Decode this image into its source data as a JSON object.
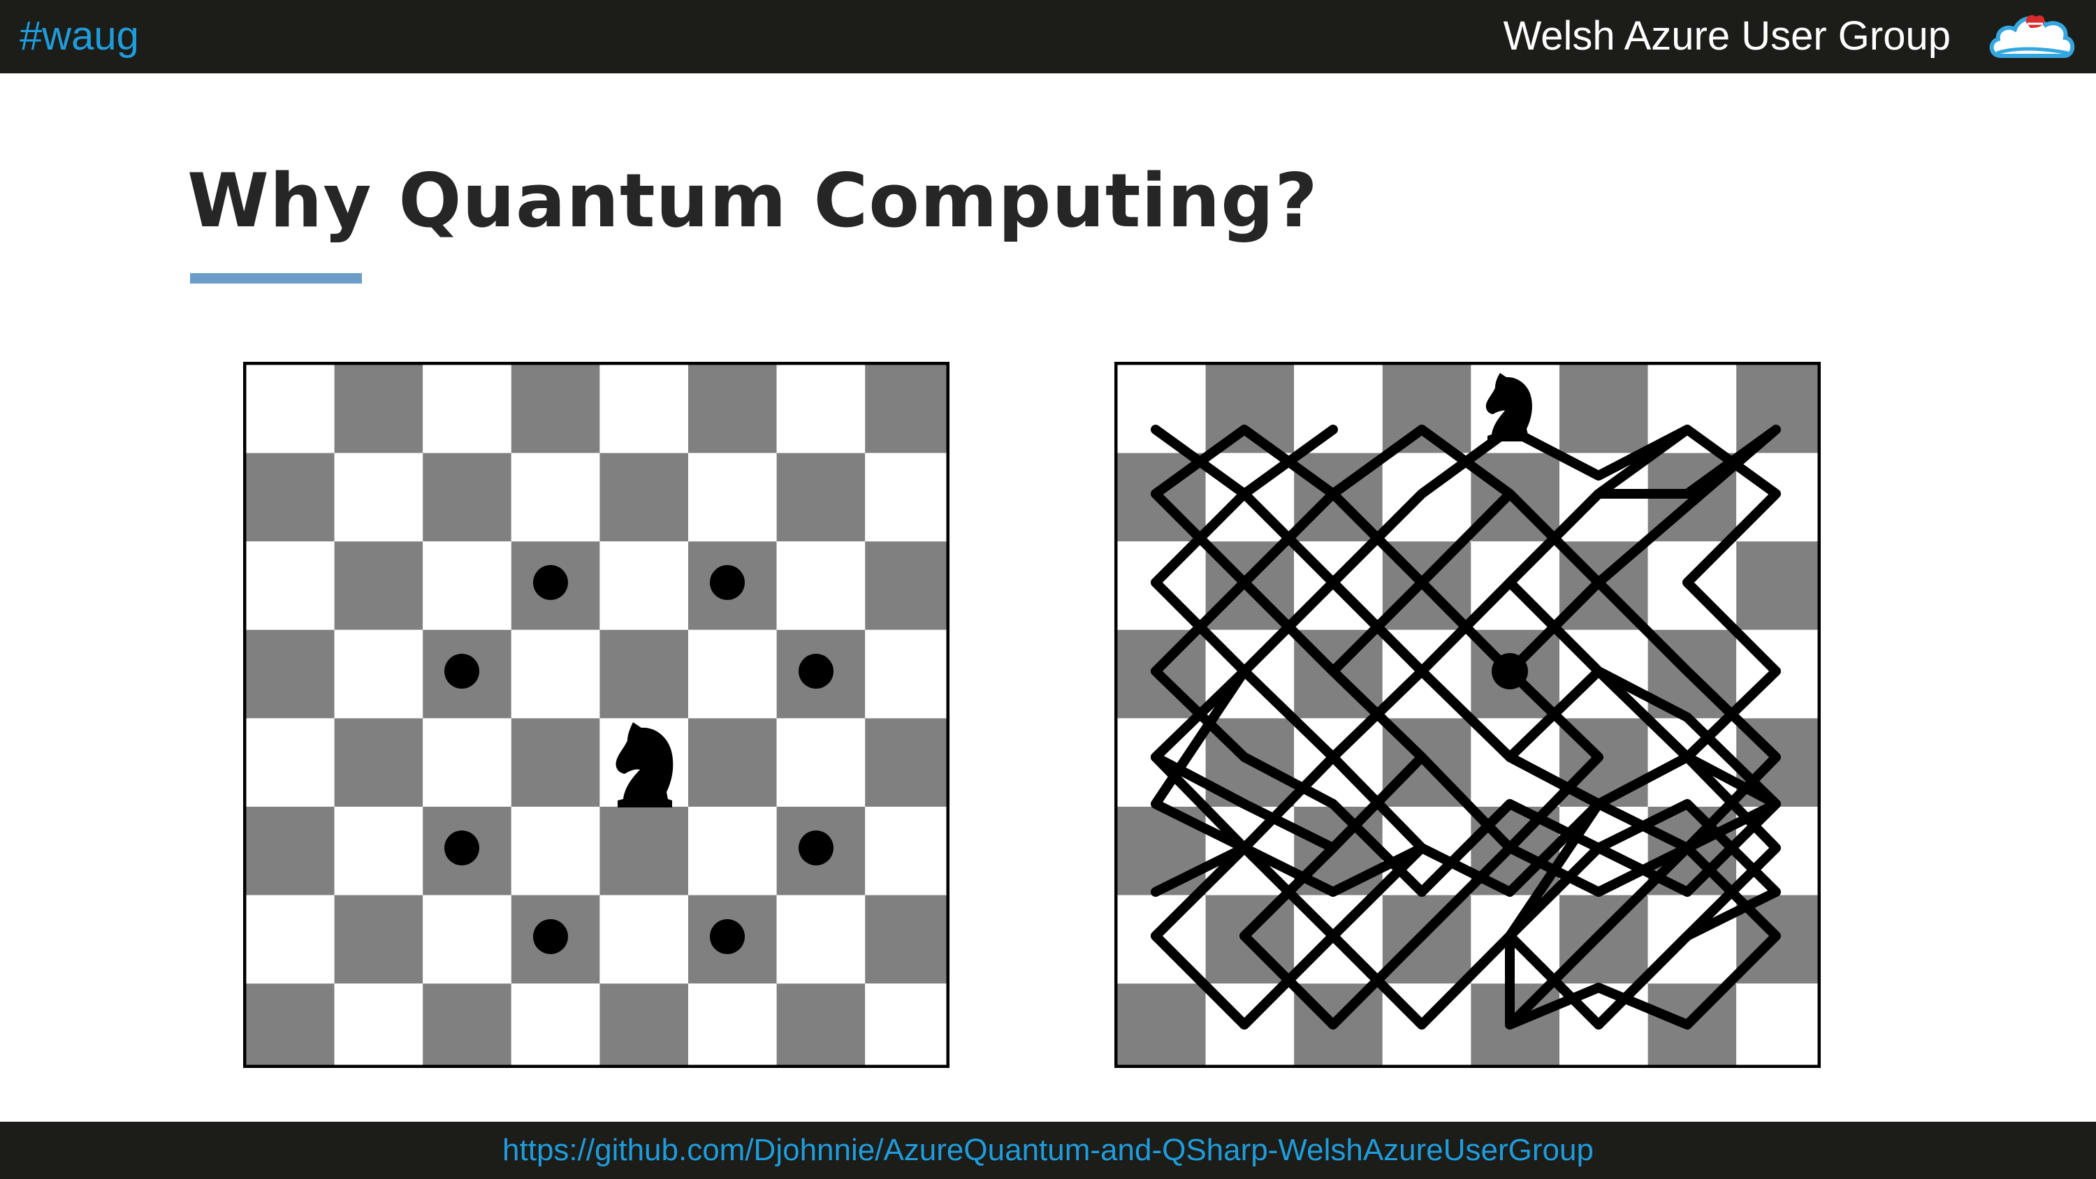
{
  "header": {
    "hashtag": "#waug",
    "group_name": "Welsh Azure User Group",
    "logo_icon": "cloud-logo-icon"
  },
  "slide": {
    "title": "Why Quantum Computing?",
    "accent_color": "#6a9ec9"
  },
  "boards": {
    "light_square_color": "#ffffff",
    "dark_square_color": "#808080",
    "piece_icon": "knight-icon",
    "left": {
      "knight_square": "e4",
      "move_targets": [
        "d6",
        "f6",
        "c5",
        "g5",
        "c3",
        "g3",
        "d2",
        "f2"
      ]
    },
    "right": {
      "knight_start_square": "e8",
      "tour_end_square": "e5",
      "tour_path": [
        "e8",
        "g7",
        "h5",
        "f6",
        "h7",
        "f8",
        "d7",
        "b8",
        "a6",
        "c7",
        "a8",
        "b6",
        "a4",
        "b2",
        "d1",
        "c3",
        "a2",
        "c1",
        "b3",
        "a1",
        "c2",
        "e1",
        "g2",
        "h4",
        "f3",
        "d2",
        "f1",
        "h2",
        "g4",
        "h6",
        "g8",
        "h7"
      ]
    }
  },
  "footer": {
    "link_text": "https://github.com/Djohnnie/AzureQuantum-and-QSharp-WelshAzureUserGroup"
  }
}
